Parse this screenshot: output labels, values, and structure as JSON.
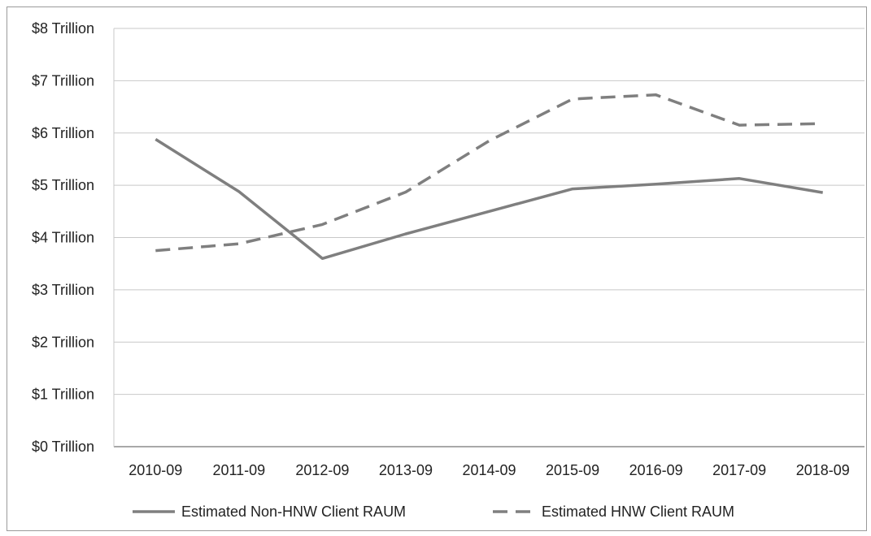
{
  "chart_data": {
    "type": "line",
    "title": "",
    "xlabel": "",
    "ylabel": "",
    "categories": [
      "2010-09",
      "2011-09",
      "2012-09",
      "2013-09",
      "2014-09",
      "2015-09",
      "2016-09",
      "2017-09",
      "2018-09"
    ],
    "y_ticks": [
      0,
      1,
      2,
      3,
      4,
      5,
      6,
      7,
      8
    ],
    "y_tick_labels": [
      "$0 Trillion",
      "$1 Trillion",
      "$2 Trillion",
      "$3 Trillion",
      "$4 Trillion",
      "$5 Trillion",
      "$6 Trillion",
      "$7 Trillion",
      "$8 Trillion"
    ],
    "ylim": [
      0,
      8
    ],
    "grid": "horizontal",
    "legend_position": "bottom",
    "series": [
      {
        "name": "Estimated Non-HNW Client RAUM",
        "style": "solid",
        "color": "#7f7f7f",
        "values": [
          5.88,
          4.88,
          3.6,
          4.07,
          4.5,
          4.93,
          5.02,
          5.13,
          4.86
        ]
      },
      {
        "name": "Estimated HNW Client RAUM",
        "style": "dashed",
        "color": "#7f7f7f",
        "values": [
          3.75,
          3.88,
          4.25,
          4.87,
          5.85,
          6.65,
          6.73,
          6.15,
          6.18
        ]
      }
    ]
  }
}
